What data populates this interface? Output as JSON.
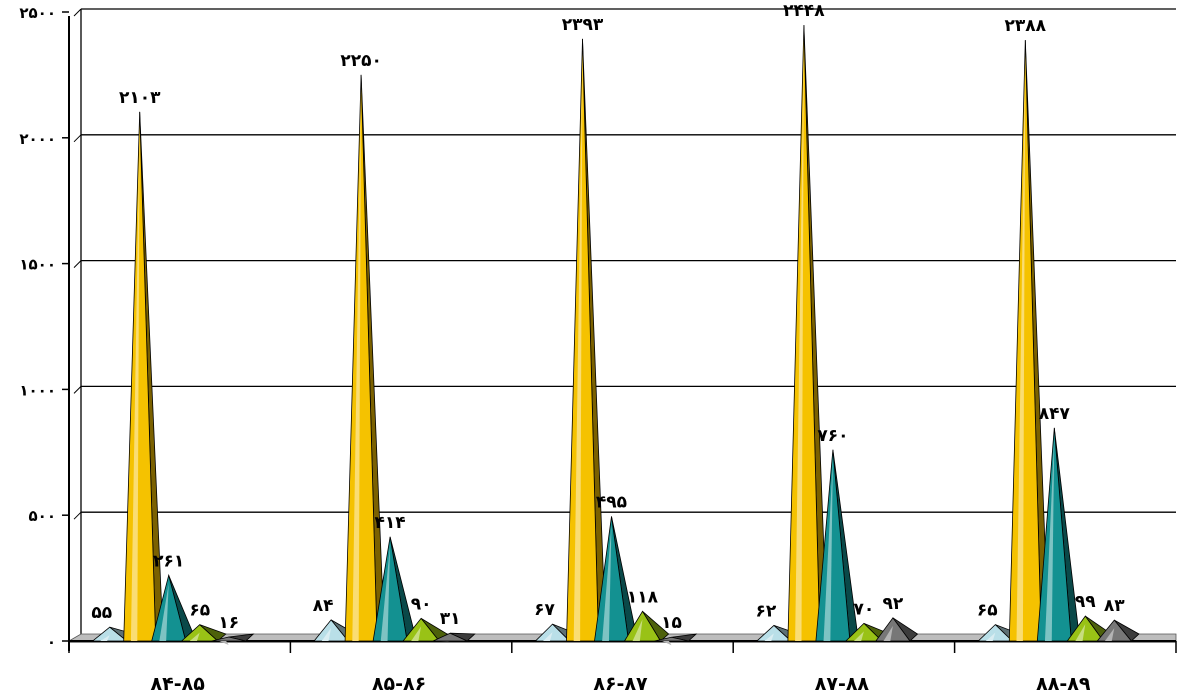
{
  "chart_data": {
    "type": "bar",
    "title": "",
    "xlabel": "",
    "ylabel": "",
    "ylim": [
      0,
      2500
    ],
    "yticks": [
      0,
      500,
      1000,
      1500,
      2000,
      2500
    ],
    "ytick_labels": [
      "۰",
      "۵۰۰",
      "۱۰۰۰",
      "۱۵۰۰",
      "۲۰۰۰",
      "۲۵۰۰"
    ],
    "categories": [
      "۸۴-۸۵",
      "۸۵-۸۶",
      "۸۶-۸۷",
      "۸۷-۸۸",
      "۸۸-۸۹"
    ],
    "grid": true,
    "legend": "none",
    "series": [
      {
        "values": [
          55,
          84,
          67,
          62,
          65
        ],
        "labels": [
          "۵۵",
          "۸۴",
          "۶۷",
          "۶۲",
          "۶۵"
        ],
        "color": "#b9dfe8"
      },
      {
        "values": [
          2103,
          2250,
          2393,
          2448,
          2388
        ],
        "labels": [
          "۲۱۰۳",
          "۲۲۵۰",
          "۲۳۹۳",
          "۲۴۴۸",
          "۲۳۸۸"
        ],
        "color": "#f5c200"
      },
      {
        "values": [
          261,
          414,
          495,
          760,
          847
        ],
        "labels": [
          "۲۶۱",
          "۴۱۴",
          "۴۹۵",
          "۷۶۰",
          "۸۴۷"
        ],
        "color": "#139191"
      },
      {
        "values": [
          65,
          90,
          118,
          70,
          99
        ],
        "labels": [
          "۶۵",
          "۹۰",
          "۱۱۸",
          "۷۰",
          "۹۹"
        ],
        "color": "#99c216"
      },
      {
        "values": [
          16,
          31,
          15,
          92,
          83
        ],
        "labels": [
          "۱۶",
          "۳۱",
          "۱۵",
          "۹۲",
          "۸۳"
        ],
        "color": "#777777"
      }
    ]
  }
}
